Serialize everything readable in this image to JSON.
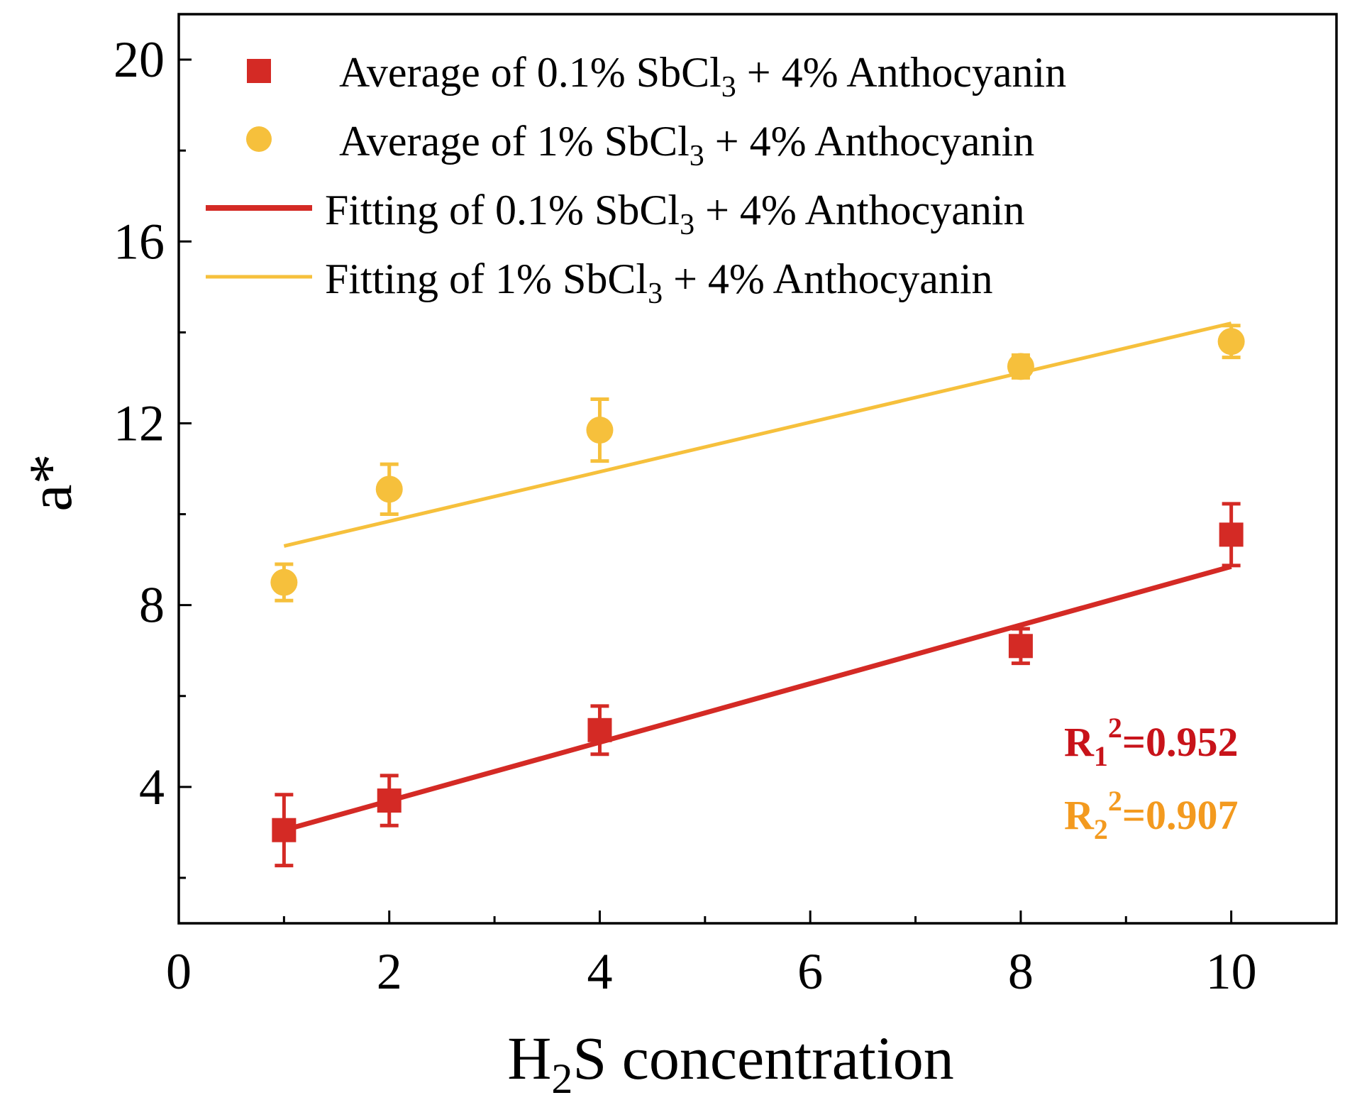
{
  "colors": {
    "series_red": "#d42a25",
    "series_yellow": "#f6c03c",
    "r2_red": "#c8131a",
    "r2_orange": "#f39a1f"
  },
  "legend": {
    "red_points": {
      "prefix": "Average of 0.1% SbCl",
      "sub": "3",
      "suffix": " + 4% Anthocyanin"
    },
    "yellow_points": {
      "prefix": "Average of 1% SbCl",
      "sub": "3",
      "suffix": " + 4% Anthocyanin"
    },
    "red_fit": {
      "prefix": "Fitting of 0.1% SbCl",
      "sub": "3",
      "suffix": " + 4% Anthocyanin"
    },
    "yellow_fit": {
      "prefix": "Fitting of 1% SbCl",
      "sub": "3",
      "suffix": " + 4% Anthocyanin"
    }
  },
  "annotations": {
    "r1": {
      "base": "R",
      "sub": "1",
      "sup": "2",
      "value": "=0.952"
    },
    "r2": {
      "base": "R",
      "sub": "2",
      "sup": "2",
      "value": "=0.907"
    }
  },
  "chart_data": {
    "type": "scatter",
    "xlabel": {
      "prefix": "H",
      "sub": "2",
      "suffix": "S concentration"
    },
    "ylabel": "a*",
    "xlim": [
      0,
      11
    ],
    "ylim": [
      1,
      21
    ],
    "x_ticks": [
      0,
      2,
      4,
      6,
      8,
      10
    ],
    "x_tick_labels": [
      "0",
      "2",
      "4",
      "6",
      "8",
      "10"
    ],
    "x_minor_ticks": [
      1,
      3,
      5,
      7,
      9
    ],
    "y_ticks": [
      4,
      8,
      12,
      16,
      20
    ],
    "y_tick_labels": [
      "4",
      "8",
      "12",
      "16",
      "20"
    ],
    "y_minor_ticks": [
      2,
      6,
      10,
      14,
      18
    ],
    "grid": false,
    "legend_position": "top-left",
    "series": [
      {
        "name": "Average of 0.1% SbCl3 + 4% Anthocyanin",
        "marker": "square",
        "color": "#d42a25",
        "x": [
          1,
          2,
          4,
          8,
          10
        ],
        "y": [
          3.05,
          3.7,
          5.25,
          7.1,
          9.55
        ],
        "error": [
          0.78,
          0.55,
          0.53,
          0.38,
          0.68
        ]
      },
      {
        "name": "Average of 1% SbCl3 + 4% Anthocyanin",
        "marker": "circle",
        "color": "#f6c03c",
        "x": [
          1,
          2,
          4,
          8,
          10
        ],
        "y": [
          8.5,
          10.55,
          11.85,
          13.25,
          13.8
        ],
        "error": [
          0.4,
          0.55,
          0.68,
          0.25,
          0.35
        ]
      }
    ],
    "fits": [
      {
        "name": "Fitting of 0.1% SbCl3 + 4% Anthocyanin",
        "color": "#d42a25",
        "x": [
          1,
          10
        ],
        "y": [
          3.05,
          8.85
        ]
      },
      {
        "name": "Fitting of 1% SbCl3 + 4% Anthocyanin",
        "color": "#f6c03c",
        "x": [
          1,
          10
        ],
        "y": [
          9.3,
          14.2
        ]
      }
    ]
  }
}
